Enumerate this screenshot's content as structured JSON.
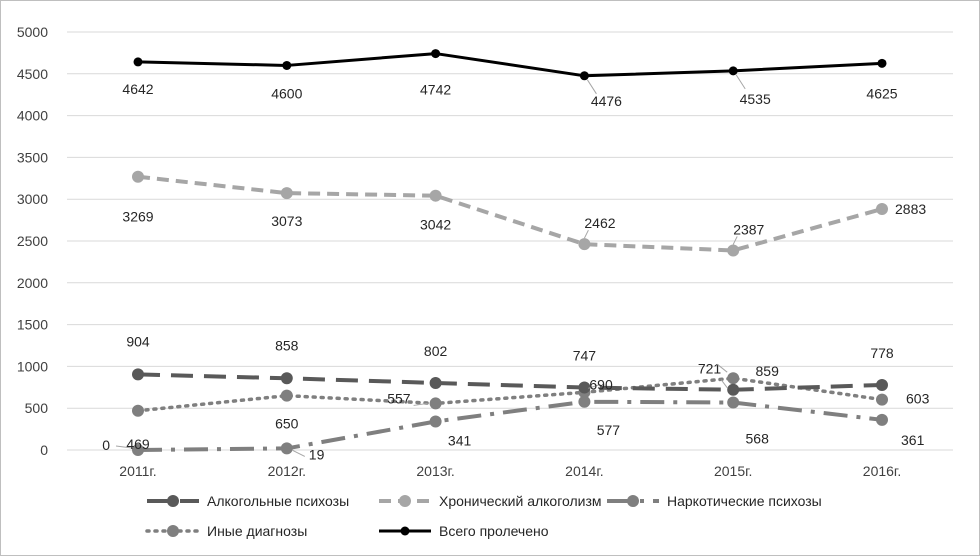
{
  "chart_data": {
    "type": "line",
    "categories": [
      "2011г.",
      "2012г.",
      "2013г.",
      "2014г.",
      "2015г.",
      "2016г."
    ],
    "ylim": [
      0,
      5000
    ],
    "yticks": [
      0,
      500,
      1000,
      1500,
      2000,
      2500,
      3000,
      3500,
      4000,
      4500,
      5000
    ],
    "grid": true,
    "legend_position": "bottom",
    "series": [
      {
        "name": "Алкогольные психозы",
        "values": [
          904,
          858,
          802,
          747,
          721,
          778
        ],
        "color": "#595959",
        "style": "long-dash"
      },
      {
        "name": "Хронический алкоголизм",
        "values": [
          3269,
          3073,
          3042,
          2462,
          2387,
          2883
        ],
        "color": "#a6a6a6",
        "style": "dash"
      },
      {
        "name": "Наркотические психозы",
        "values": [
          0,
          19,
          341,
          577,
          568,
          361
        ],
        "color": "#7f7f7f",
        "style": "dash-dot"
      },
      {
        "name": "Иные диагнозы",
        "values": [
          469,
          650,
          557,
          690,
          859,
          603
        ],
        "color": "#7f7f7f",
        "style": "dot"
      },
      {
        "name": "Всего пролечено",
        "values": [
          4642,
          4600,
          4742,
          4476,
          4535,
          4625
        ],
        "color": "#000000",
        "style": "solid"
      }
    ]
  }
}
